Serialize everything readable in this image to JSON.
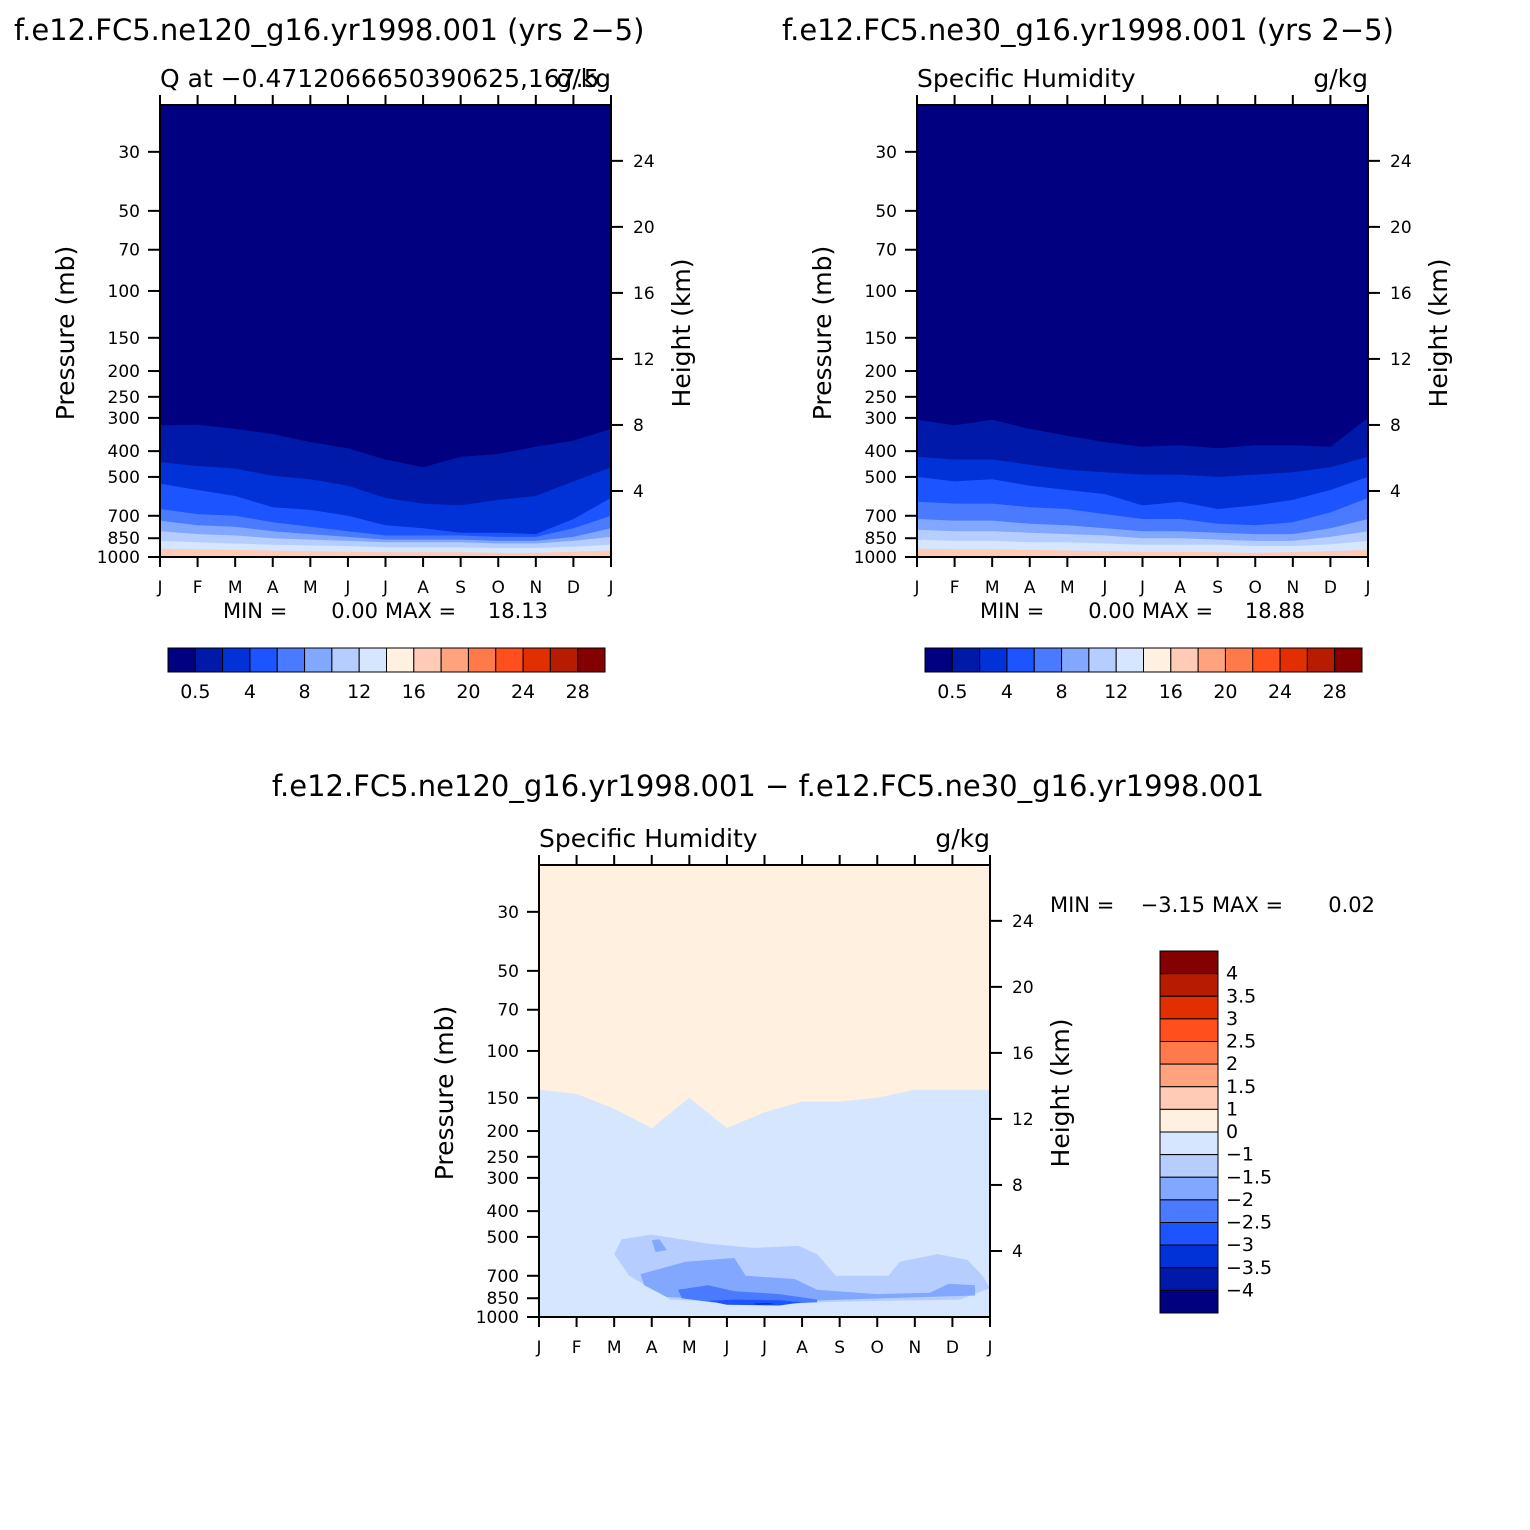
{
  "figure": {
    "top_left_title": "f.e12.FC5.ne120_g16.yr1998.001 (yrs 2−5)",
    "top_right_title": "f.e12.FC5.ne30_g16.yr1998.001 (yrs 2−5)",
    "bottom_title": "f.e12.FC5.ne120_g16.yr1998.001 − f.e12.FC5.ne30_g16.yr1998.001"
  },
  "chart_data": [
    {
      "type": "heatmap",
      "panel": "ne120",
      "subtitle_left": "Q at −0.4712066650390625,167.5",
      "subtitle_right": "g/kg",
      "xlabel": "",
      "ylabel": "Pressure (mb)",
      "ylabel_right": "Height (km)",
      "x_ticks": [
        "J",
        "F",
        "M",
        "A",
        "M",
        "J",
        "J",
        "A",
        "S",
        "O",
        "N",
        "D",
        "J"
      ],
      "y_ticks": [
        30,
        50,
        70,
        100,
        150,
        200,
        250,
        300,
        400,
        500,
        700,
        850,
        1000
      ],
      "y_ticks_right": [
        4,
        8,
        12,
        16,
        20,
        24
      ],
      "ylim": [
        1000,
        20
      ],
      "log_scale_y": true,
      "min_label": "MIN =",
      "min_value": "0.00",
      "max_label": "MAX =",
      "max_value": "18.13",
      "contour_colors": [
        "#000080",
        "#0019a8",
        "#0032d8",
        "#1c55ff",
        "#4a7aff",
        "#82a7ff",
        "#b6ceff",
        "#d6e6ff",
        "#fff0e0",
        "#ffcab6",
        "#ffa27e",
        "#ff7a4a",
        "#ff4f1c",
        "#e12f00",
        "#b81c00",
        "#850000"
      ],
      "colorbar_labels": [
        "0.5",
        "4",
        "8",
        "12",
        "16",
        "20",
        "24",
        "28"
      ],
      "contour_levels_pressure": {
        "description": "pressure of iso-lines (mb) per month J..J for humidity bands",
        "bands": [
          [
            320,
            318,
            330,
            345,
            370,
            390,
            430,
            460,
            420,
            410,
            385,
            365,
            330
          ],
          [
            440,
            455,
            465,
            495,
            510,
            540,
            600,
            630,
            640,
            610,
            590,
            520,
            460
          ],
          [
            530,
            560,
            590,
            650,
            665,
            700,
            760,
            780,
            810,
            810,
            820,
            720,
            600
          ],
          [
            660,
            690,
            700,
            740,
            770,
            800,
            830,
            830,
            830,
            840,
            840,
            780,
            700
          ],
          [
            730,
            760,
            770,
            800,
            820,
            840,
            860,
            860,
            860,
            870,
            870,
            840,
            780
          ],
          [
            800,
            820,
            830,
            850,
            860,
            870,
            880,
            880,
            880,
            890,
            890,
            870,
            840
          ],
          [
            870,
            880,
            890,
            900,
            905,
            910,
            920,
            920,
            920,
            925,
            925,
            915,
            900
          ],
          [
            930,
            935,
            940,
            945,
            950,
            955,
            960,
            960,
            960,
            965,
            965,
            955,
            945
          ]
        ]
      }
    },
    {
      "type": "heatmap",
      "panel": "ne30",
      "subtitle_left": "Specific Humidity",
      "subtitle_right": "g/kg",
      "xlabel": "",
      "ylabel": "Pressure (mb)",
      "ylabel_right": "Height (km)",
      "x_ticks": [
        "J",
        "F",
        "M",
        "A",
        "M",
        "J",
        "J",
        "A",
        "S",
        "O",
        "N",
        "D",
        "J"
      ],
      "y_ticks": [
        30,
        50,
        70,
        100,
        150,
        200,
        250,
        300,
        400,
        500,
        700,
        850,
        1000
      ],
      "y_ticks_right": [
        4,
        8,
        12,
        16,
        20,
        24
      ],
      "ylim": [
        1000,
        20
      ],
      "log_scale_y": true,
      "min_label": "MIN =",
      "min_value": "0.00",
      "max_label": "MAX =",
      "max_value": "18.88",
      "contour_colors": [
        "#000080",
        "#0019a8",
        "#0032d8",
        "#1c55ff",
        "#4a7aff",
        "#82a7ff",
        "#b6ceff",
        "#d6e6ff",
        "#fff0e0",
        "#ffcab6",
        "#ffa27e",
        "#ff7a4a",
        "#ff4f1c",
        "#e12f00",
        "#b81c00",
        "#850000"
      ],
      "colorbar_labels": [
        "0.5",
        "4",
        "8",
        "12",
        "16",
        "20",
        "24",
        "28"
      ],
      "contour_levels_pressure": {
        "description": "pressure of iso-lines (mb) per month J..J for humidity bands",
        "bands": [
          [
            305,
            320,
            305,
            330,
            350,
            370,
            385,
            380,
            390,
            380,
            380,
            385,
            300
          ],
          [
            420,
            430,
            430,
            450,
            470,
            480,
            490,
            490,
            500,
            490,
            480,
            460,
            420
          ],
          [
            500,
            520,
            510,
            540,
            560,
            580,
            640,
            620,
            660,
            640,
            610,
            560,
            500
          ],
          [
            620,
            630,
            630,
            650,
            660,
            690,
            720,
            720,
            750,
            760,
            740,
            680,
            600
          ],
          [
            720,
            730,
            730,
            750,
            760,
            780,
            800,
            800,
            810,
            820,
            820,
            780,
            720
          ],
          [
            790,
            800,
            800,
            810,
            820,
            830,
            850,
            850,
            860,
            870,
            870,
            840,
            800
          ],
          [
            860,
            870,
            870,
            880,
            880,
            890,
            900,
            900,
            900,
            910,
            910,
            895,
            870
          ],
          [
            930,
            935,
            935,
            940,
            945,
            950,
            955,
            955,
            960,
            965,
            960,
            950,
            940
          ]
        ]
      }
    },
    {
      "type": "heatmap",
      "panel": "difference",
      "subtitle_left": "Specific Humidity",
      "subtitle_right": "g/kg",
      "xlabel": "",
      "ylabel": "Pressure (mb)",
      "ylabel_right": "Height (km)",
      "x_ticks": [
        "J",
        "F",
        "M",
        "A",
        "M",
        "J",
        "J",
        "A",
        "S",
        "O",
        "N",
        "D",
        "J"
      ],
      "y_ticks": [
        30,
        50,
        70,
        100,
        150,
        200,
        250,
        300,
        400,
        500,
        700,
        850,
        1000
      ],
      "y_ticks_right": [
        4,
        8,
        12,
        16,
        20,
        24
      ],
      "ylim": [
        1000,
        20
      ],
      "log_scale_y": true,
      "min_label": "MIN =",
      "min_value": "−3.15",
      "max_label": "MAX =",
      "max_value": "0.02",
      "contour_colors": [
        "#000080",
        "#0019a8",
        "#0032d8",
        "#1c55ff",
        "#4a7aff",
        "#82a7ff",
        "#b6ceff",
        "#d6e6ff",
        "#fff0e0",
        "#ffcab6",
        "#ffa27e",
        "#ff7a4a",
        "#ff4f1c",
        "#e12f00",
        "#b81c00",
        "#850000"
      ],
      "colorbar_labels": [
        "4",
        "3.5",
        "3",
        "2.5",
        "2",
        "1.5",
        "1",
        "0",
        "−1",
        "−1.5",
        "−2",
        "−2.5",
        "−3",
        "−3.5",
        "−4"
      ],
      "zero_line_pressure": [
        140,
        145,
        165,
        195,
        150,
        195,
        170,
        155,
        155,
        150,
        140,
        140,
        140
      ],
      "negative_regions": [
        {
          "level": "-1 to -1.5",
          "outline": [
            [
              2.2,
              510
            ],
            [
              3.0,
              490
            ],
            [
              4.5,
              530
            ],
            [
              5.7,
              550
            ],
            [
              6.9,
              540
            ],
            [
              7.4,
              580
            ],
            [
              7.9,
              700
            ],
            [
              9.3,
              700
            ],
            [
              9.6,
              620
            ],
            [
              10.6,
              580
            ],
            [
              11.4,
              610
            ],
            [
              11.8,
              700
            ],
            [
              12.0,
              780
            ],
            [
              11.2,
              860
            ],
            [
              9.0,
              870
            ],
            [
              6.0,
              890
            ],
            [
              3.5,
              860
            ],
            [
              2.4,
              700
            ],
            [
              2.0,
              580
            ]
          ]
        },
        {
          "level": "-1.5 to -2",
          "outline": [
            [
              2.7,
              690
            ],
            [
              3.9,
              620
            ],
            [
              5.2,
              600
            ],
            [
              5.5,
              700
            ],
            [
              6.8,
              720
            ],
            [
              7.4,
              790
            ],
            [
              9.0,
              820
            ],
            [
              10.4,
              810
            ],
            [
              10.9,
              750
            ],
            [
              11.6,
              760
            ],
            [
              11.6,
              830
            ],
            [
              9.2,
              850
            ],
            [
              6.0,
              880
            ],
            [
              3.4,
              840
            ],
            [
              2.8,
              760
            ]
          ]
        },
        {
          "level": "-2 to -2.5",
          "outline": [
            [
              3.7,
              790
            ],
            [
              4.5,
              760
            ],
            [
              5.2,
              800
            ],
            [
              6.4,
              820
            ],
            [
              7.4,
              860
            ],
            [
              7.4,
              880
            ],
            [
              6.0,
              900
            ],
            [
              4.6,
              880
            ],
            [
              3.8,
              850
            ]
          ]
        },
        {
          "level": "-2.5 to -3",
          "outline": [
            [
              4.5,
              870
            ],
            [
              5.2,
              860
            ],
            [
              6.4,
              865
            ],
            [
              7.0,
              880
            ],
            [
              6.4,
              905
            ],
            [
              5.0,
              900
            ]
          ]
        },
        {
          "level": "-3 to -3.5",
          "outline": [
            [
              5.7,
              890
            ],
            [
              6.1,
              885
            ],
            [
              6.3,
              895
            ],
            [
              5.8,
              900
            ]
          ]
        },
        {
          "level": "-1 to -1.5 small",
          "outline": [
            [
              3.0,
              515
            ],
            [
              3.2,
              510
            ],
            [
              3.4,
              560
            ],
            [
              3.1,
              570
            ]
          ]
        }
      ]
    }
  ]
}
